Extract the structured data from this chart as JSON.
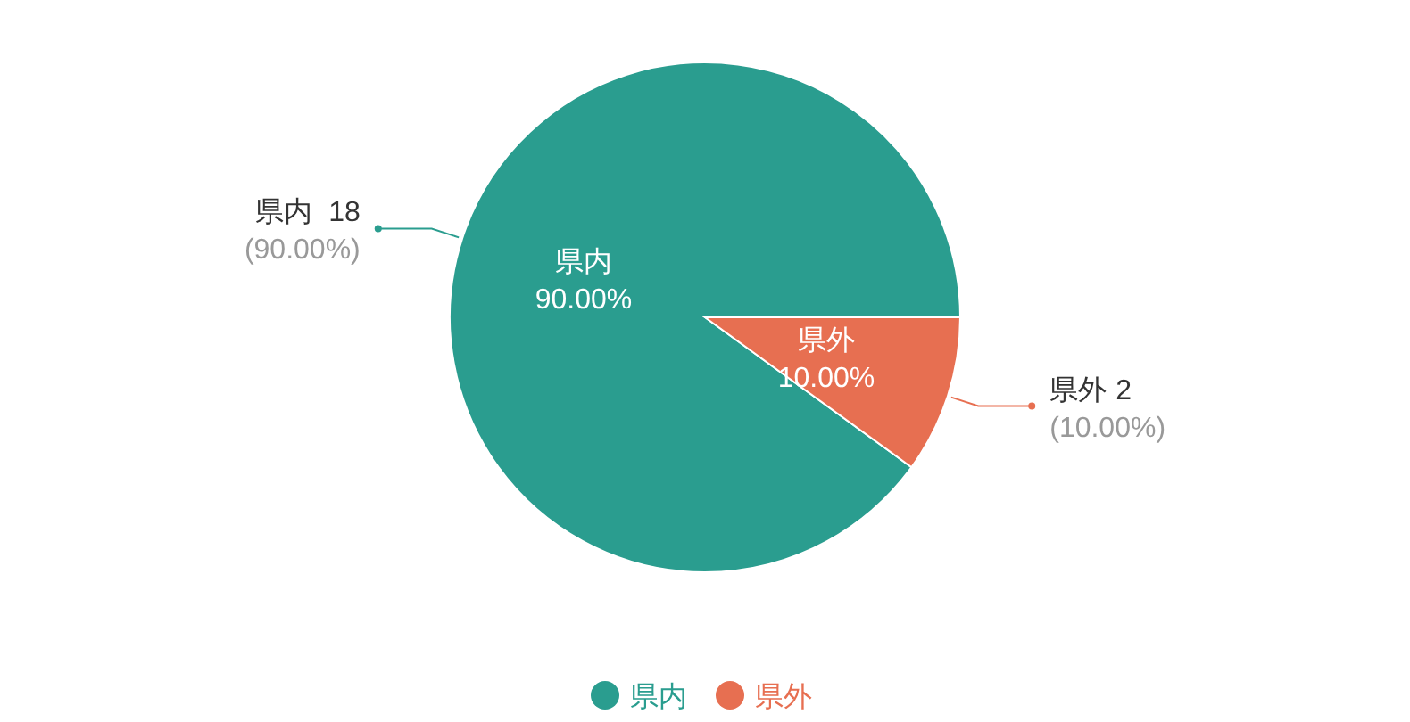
{
  "chart_data": {
    "type": "pie",
    "categories": [
      "県内",
      "県外"
    ],
    "values": [
      18,
      2
    ],
    "colors": [
      "#2a9d8f",
      "#e76f51"
    ],
    "data_labels": true,
    "annotations": [
      {
        "text": "90.00%",
        "x": "県内"
      },
      {
        "text": "(90.00%)",
        "x": "県内"
      },
      {
        "text": "10.00%",
        "x": "県外"
      },
      {
        "text": "(10.00%)",
        "x": "県外"
      }
    ],
    "legend": "bottom"
  }
}
